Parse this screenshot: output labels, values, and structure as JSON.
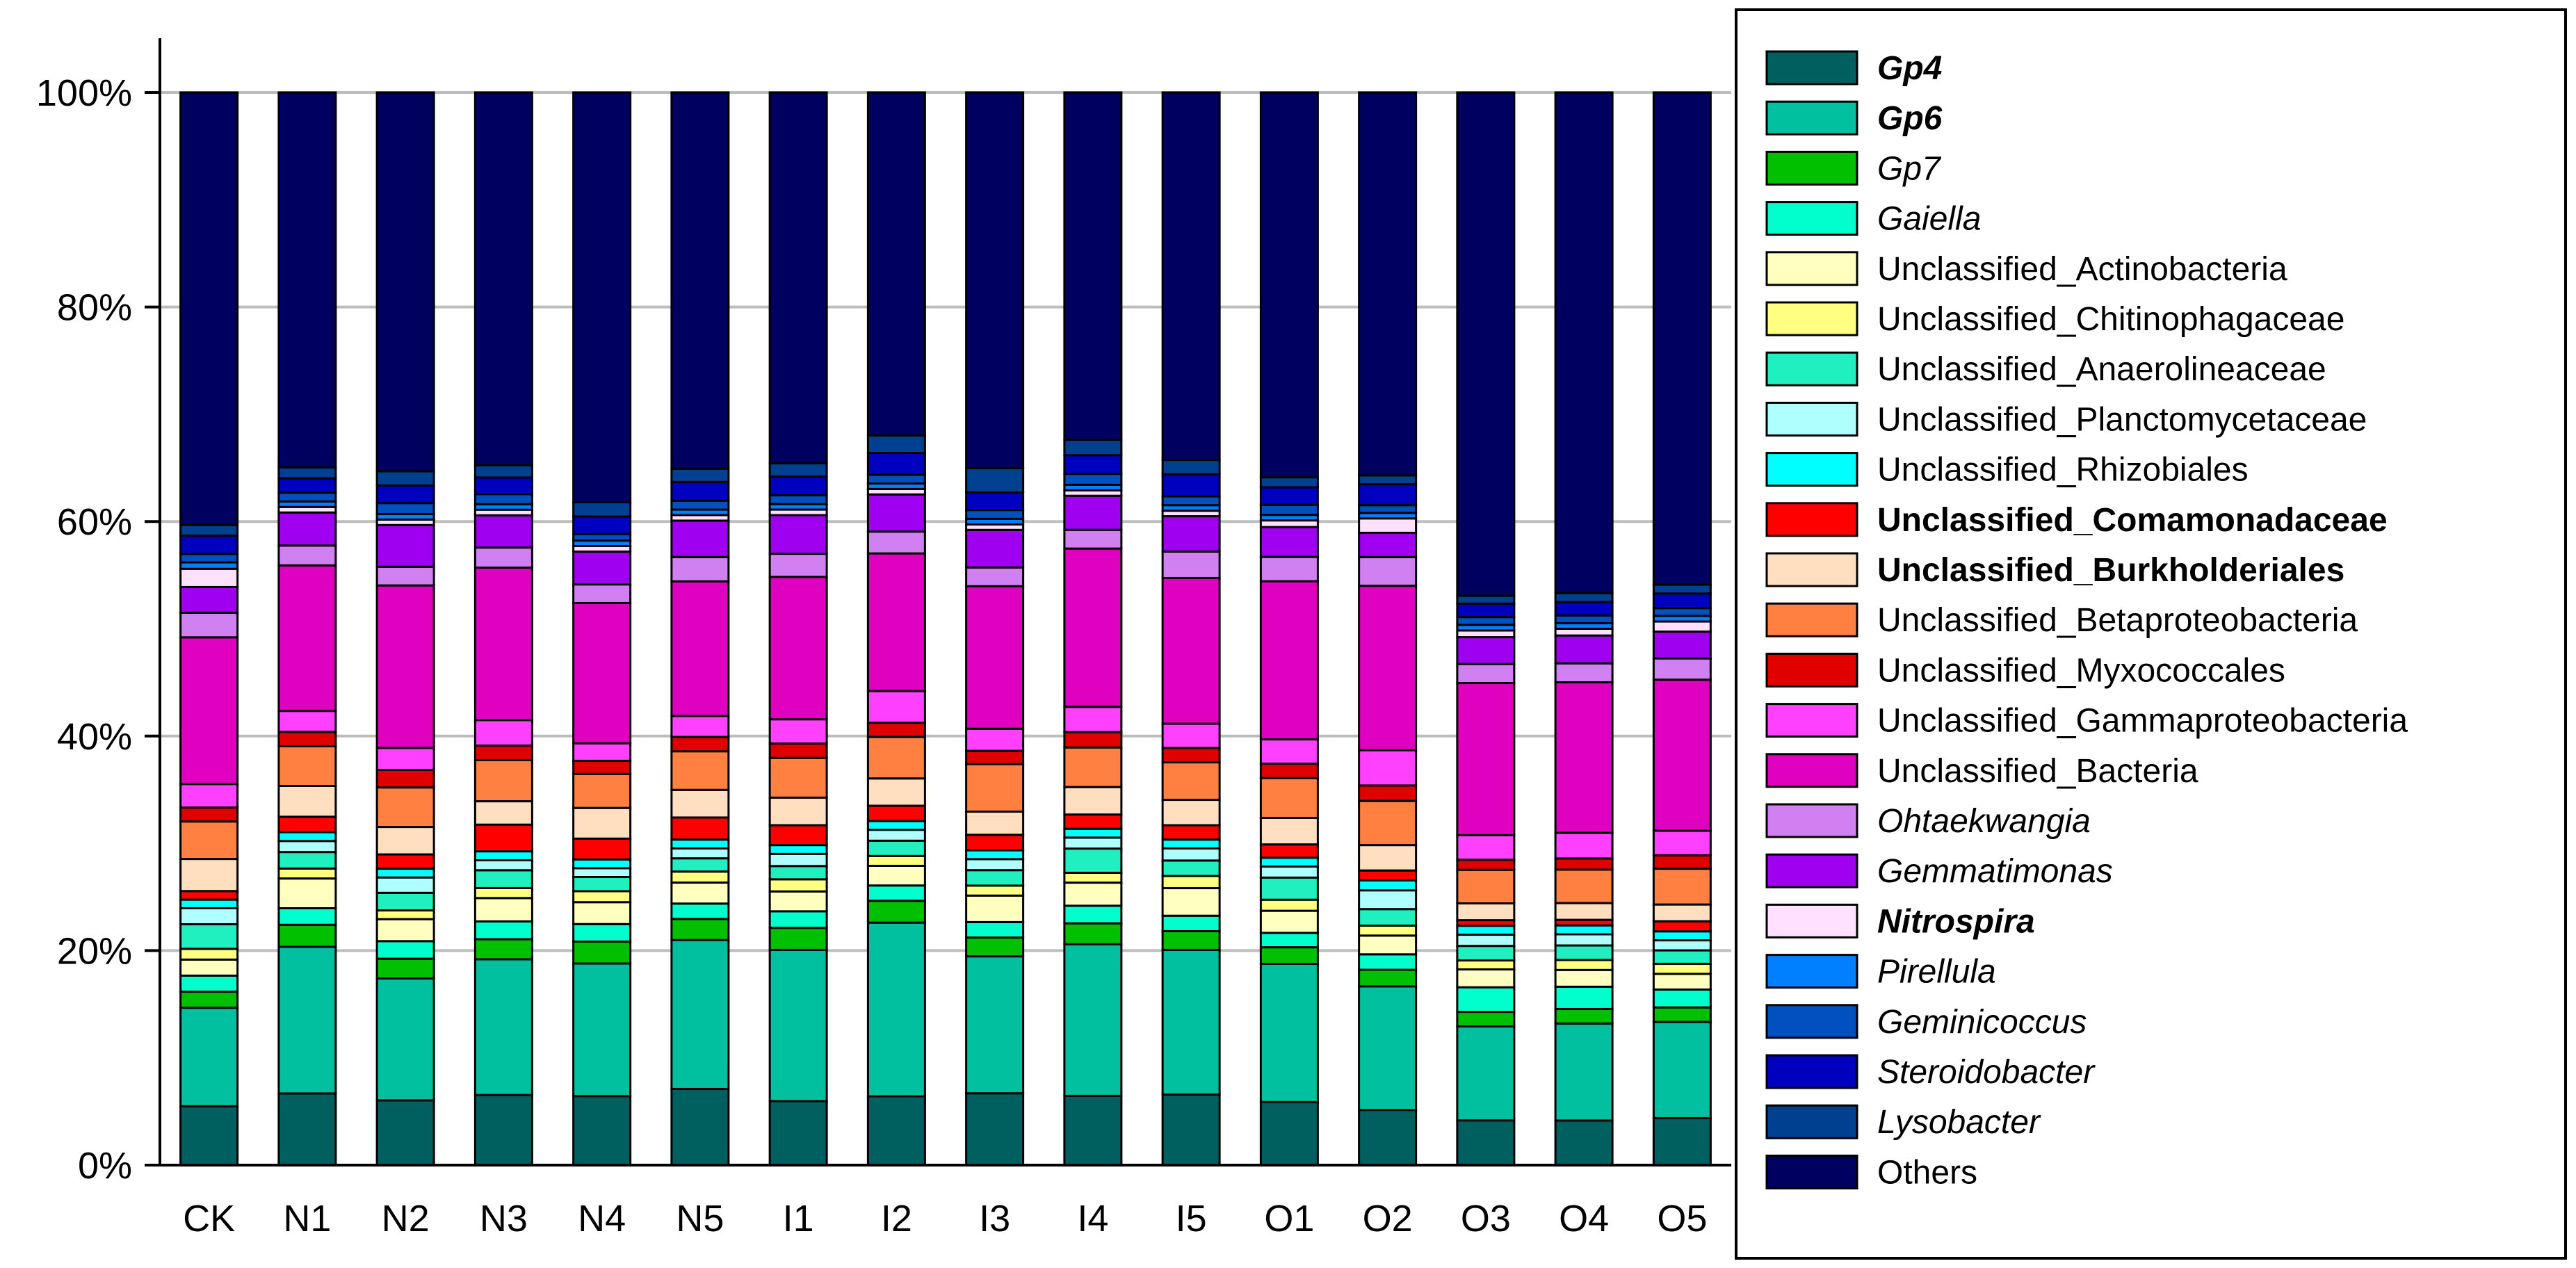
{
  "chart_data": {
    "type": "bar",
    "stacked": true,
    "percent": true,
    "categories": [
      "CK",
      "N1",
      "N2",
      "N3",
      "N4",
      "N5",
      "I1",
      "I2",
      "I3",
      "I4",
      "I5",
      "O1",
      "O2",
      "O3",
      "O4",
      "O5"
    ],
    "y_ticks": [
      "0%",
      "20%",
      "40%",
      "60%",
      "80%",
      "100%"
    ],
    "ylim": [
      0,
      100
    ],
    "grid": true,
    "legend_position": "right",
    "series": [
      {
        "name": "Gp4",
        "color": "#006060",
        "italic": true,
        "bold": true,
        "values": [
          5.5,
          6.5,
          5.9,
          6.3,
          6.3,
          6.9,
          5.8,
          6.3,
          6.5,
          6.3,
          6.4,
          5.7,
          5.0,
          4.0,
          4.0,
          4.2
        ]
      },
      {
        "name": "Gp6",
        "color": "#00C0A0",
        "italic": true,
        "bold": true,
        "values": [
          9.2,
          13.3,
          11.1,
          12.2,
          12.1,
          13.5,
          13.7,
          15.9,
          12.4,
          13.8,
          13.1,
          12.5,
          11.2,
          8.4,
          8.7,
          8.6
        ]
      },
      {
        "name": "Gp7",
        "color": "#00C000",
        "italic": true,
        "bold": false,
        "values": [
          1.5,
          2.0,
          1.8,
          1.8,
          2.0,
          1.9,
          2.0,
          2.0,
          1.7,
          1.9,
          1.7,
          1.5,
          1.5,
          1.3,
          1.3,
          1.3
        ]
      },
      {
        "name": "Gaiella",
        "color": "#00FFCC",
        "italic": true,
        "bold": false,
        "values": [
          1.5,
          1.5,
          1.6,
          1.6,
          1.6,
          1.4,
          1.5,
          1.4,
          1.4,
          1.6,
          1.4,
          1.3,
          1.4,
          2.2,
          2.0,
          1.6
        ]
      },
      {
        "name": "Unclassified_Actinobacteria",
        "color": "#FFFFC0",
        "italic": false,
        "bold": false,
        "values": [
          1.5,
          2.7,
          2.0,
          2.1,
          2.0,
          1.9,
          1.8,
          1.8,
          2.4,
          2.1,
          2.5,
          2.0,
          1.7,
          1.6,
          1.5,
          1.4
        ]
      },
      {
        "name": "Unclassified_Chitinophagaceae",
        "color": "#FFFF80",
        "italic": false,
        "bold": false,
        "values": [
          1.0,
          0.9,
          0.8,
          0.9,
          1.0,
          1.0,
          1.1,
          0.9,
          0.9,
          0.9,
          1.1,
          1.0,
          0.9,
          0.8,
          0.9,
          0.9
        ]
      },
      {
        "name": "Unclassified_Anaerolineaceae",
        "color": "#20F0C0",
        "italic": false,
        "bold": false,
        "values": [
          2.3,
          1.5,
          1.6,
          1.6,
          1.3,
          1.2,
          1.2,
          1.4,
          1.4,
          2.2,
          1.4,
          2.0,
          1.5,
          1.3,
          1.3,
          1.2
        ]
      },
      {
        "name": "Unclassified_Planctomycetaceae",
        "color": "#B0FFFF",
        "italic": false,
        "bold": false,
        "values": [
          1.5,
          1.0,
          1.4,
          0.9,
          0.8,
          0.9,
          1.1,
          1.0,
          1.0,
          1.0,
          1.1,
          1.0,
          1.7,
          1.0,
          1.0,
          0.9
        ]
      },
      {
        "name": "Unclassified_Rhizobiales",
        "color": "#00FFFF",
        "italic": false,
        "bold": false,
        "values": [
          0.8,
          0.8,
          0.8,
          0.8,
          0.8,
          0.8,
          0.8,
          0.8,
          0.8,
          0.8,
          0.8,
          0.8,
          0.9,
          0.8,
          0.8,
          0.8
        ]
      },
      {
        "name": "Unclassified_Comamonadaceae",
        "color": "#FF0000",
        "italic": false,
        "bold": true,
        "values": [
          0.8,
          1.4,
          1.3,
          2.4,
          1.9,
          2.0,
          1.8,
          1.4,
          1.4,
          1.3,
          1.3,
          1.2,
          0.9,
          0.5,
          0.5,
          0.9
        ]
      },
      {
        "name": "Unclassified_Burkholderiales",
        "color": "#FFDFC0",
        "italic": false,
        "bold": true,
        "values": [
          3.0,
          2.8,
          2.5,
          2.1,
          2.8,
          2.5,
          2.5,
          2.5,
          2.1,
          2.5,
          2.3,
          2.4,
          2.3,
          1.5,
          1.5,
          1.5
        ]
      },
      {
        "name": "Unclassified_Betaproteobacteria",
        "color": "#FF8040",
        "italic": false,
        "bold": false,
        "values": [
          3.5,
          3.6,
          3.6,
          3.7,
          3.1,
          3.5,
          3.6,
          3.8,
          4.3,
          3.6,
          3.4,
          3.6,
          4.0,
          3.0,
          3.0,
          3.2
        ]
      },
      {
        "name": "Unclassified_Myxococcales",
        "color": "#E00000",
        "italic": false,
        "bold": false,
        "values": [
          1.3,
          1.3,
          1.6,
          1.3,
          1.2,
          1.3,
          1.3,
          1.3,
          1.2,
          1.4,
          1.3,
          1.3,
          1.4,
          0.9,
          1.0,
          1.2
        ]
      },
      {
        "name": "Unclassified_Gammaproteobacteria",
        "color": "#FF40FF",
        "italic": false,
        "bold": false,
        "values": [
          2.2,
          1.9,
          2.0,
          2.3,
          1.6,
          1.9,
          2.2,
          2.9,
          2.0,
          2.3,
          2.2,
          2.2,
          3.2,
          2.2,
          2.3,
          2.2
        ]
      },
      {
        "name": "Unclassified_Bacteria",
        "color": "#E000C0",
        "italic": false,
        "bold": false,
        "values": [
          13.7,
          13.2,
          14.8,
          13.7,
          12.8,
          12.2,
          12.9,
          12.6,
          12.9,
          14.4,
          13.2,
          14.3,
          14.9,
          13.6,
          13.5,
          13.5
        ]
      },
      {
        "name": "Ohtaekwangia",
        "color": "#D080F0",
        "italic": true,
        "bold": false,
        "values": [
          2.3,
          1.8,
          1.7,
          1.8,
          1.7,
          2.2,
          2.1,
          2.0,
          1.7,
          1.7,
          2.4,
          2.2,
          2.6,
          1.7,
          1.7,
          1.9
        ]
      },
      {
        "name": "Gemmatimonas",
        "color": "#A000F0",
        "italic": true,
        "bold": false,
        "values": [
          2.4,
          3.0,
          3.8,
          2.9,
          3.0,
          3.3,
          3.5,
          3.4,
          3.4,
          3.1,
          3.2,
          2.7,
          2.2,
          2.4,
          2.5,
          2.4
        ]
      },
      {
        "name": "Nitrospira",
        "color": "#FFE0FF",
        "italic": true,
        "bold": true,
        "values": [
          1.7,
          0.5,
          0.5,
          0.5,
          0.5,
          0.5,
          0.5,
          0.5,
          0.5,
          0.5,
          0.5,
          0.6,
          1.3,
          0.6,
          0.6,
          0.9
        ]
      },
      {
        "name": "Pirellula",
        "color": "#0080FF",
        "italic": true,
        "bold": false,
        "values": [
          0.6,
          0.5,
          0.5,
          0.5,
          0.5,
          0.5,
          0.5,
          0.5,
          0.5,
          0.5,
          0.5,
          0.5,
          0.5,
          0.5,
          0.5,
          0.5
        ]
      },
      {
        "name": "Geminicoccus",
        "color": "#0050C0",
        "italic": true,
        "bold": false,
        "values": [
          0.8,
          0.8,
          1.0,
          0.9,
          0.6,
          0.8,
          0.8,
          0.8,
          0.8,
          1.0,
          0.8,
          0.9,
          0.7,
          0.7,
          0.7,
          0.7
        ]
      },
      {
        "name": "Steroidobacter",
        "color": "#0000C0",
        "italic": true,
        "bold": false,
        "values": [
          1.7,
          1.3,
          1.6,
          1.5,
          1.6,
          1.7,
          1.7,
          2.0,
          1.6,
          1.7,
          2.0,
          1.6,
          1.9,
          1.2,
          1.2,
          1.3
        ]
      },
      {
        "name": "Lysobacter",
        "color": "#004090",
        "italic": true,
        "bold": false,
        "values": [
          1.0,
          1.0,
          1.3,
          1.1,
          1.3,
          1.2,
          1.2,
          1.6,
          2.2,
          1.4,
          1.3,
          0.9,
          0.8,
          0.7,
          0.8,
          0.8
        ]
      },
      {
        "name": "Others",
        "color": "#000060",
        "italic": false,
        "bold": false,
        "values": [
          40.4,
          34.0,
          34.5,
          33.5,
          37.4,
          34.1,
          33.6,
          31.4,
          34.0,
          31.6,
          33.3,
          34.8,
          34.7,
          45.0,
          44.9,
          44.0
        ]
      }
    ]
  }
}
